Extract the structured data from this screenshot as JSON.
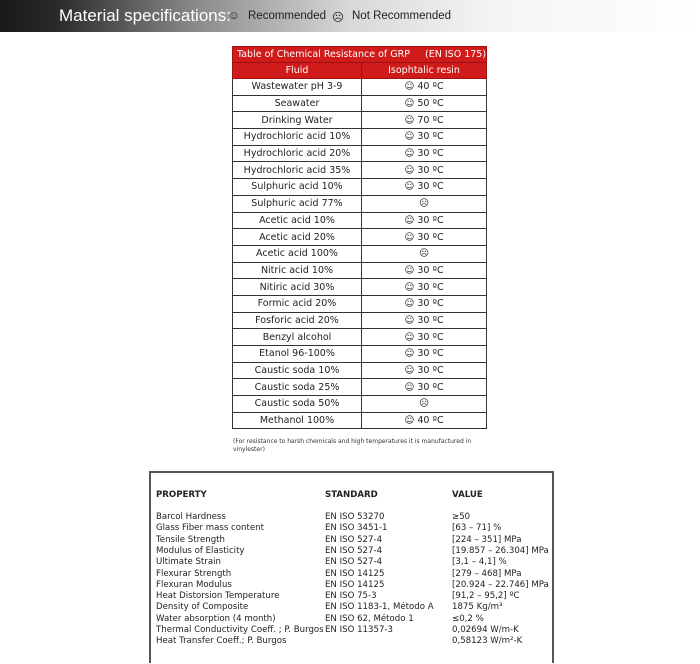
{
  "banner": {
    "title": "Material specifications:",
    "recommended_icon": "smiley-face-icon",
    "recommended": "Recommended",
    "not_recommended_icon": "sad-face-icon",
    "not_recommended": "Not Recommended",
    "smile": "☺",
    "sad": "☹"
  },
  "chem_table": {
    "title": "Table of Chemical Resistance of GRP     (EN ISO 175)",
    "col_fluid": "Fluid",
    "col_resin": "Isophtalic resin",
    "accent": "#d01b1b",
    "rows": [
      {
        "fluid": "Wastewater pH 3-9",
        "value": "☺ 40 ºC"
      },
      {
        "fluid": "Seawater",
        "value": "☺ 50 ºC"
      },
      {
        "fluid": "Drinking Water",
        "value": "☺ 70 ºC"
      },
      {
        "fluid": "Hydrochloric acid  10%",
        "value": "☺ 30 ºC"
      },
      {
        "fluid": "Hydrochloric acid  20%",
        "value": "☺ 30 ºC"
      },
      {
        "fluid": "Hydrochloric acid  35%",
        "value": "☺ 30 ºC"
      },
      {
        "fluid": "Sulphuric acid 10%",
        "value": "☺ 30 ºC"
      },
      {
        "fluid": "Sulphuric acid 77%",
        "value": "☹"
      },
      {
        "fluid": "Acetic acid 10%",
        "value": "☺ 30 ºC"
      },
      {
        "fluid": "Acetic acid  20%",
        "value": "☺ 30 ºC"
      },
      {
        "fluid": "Acetic acid  100%",
        "value": "☹"
      },
      {
        "fluid": "Nitric acid  10%",
        "value": "☺ 30 ºC"
      },
      {
        "fluid": "Nitiric acid  30%",
        "value": "☺ 30 ºC"
      },
      {
        "fluid": "Formic acid 20%",
        "value": "☺ 30 ºC"
      },
      {
        "fluid": "Fosforic acid 20%",
        "value": "☺ 30 ºC"
      },
      {
        "fluid": "Benzyl alcohol",
        "value": "☺ 30 ºC"
      },
      {
        "fluid": "Etanol 96-100%",
        "value": "☺ 30 ºC"
      },
      {
        "fluid": "Caustic soda 10%",
        "value": "☺ 30 ºC"
      },
      {
        "fluid": "Caustic soda 25%",
        "value": "☺ 30 ºC"
      },
      {
        "fluid": "Caustic soda 50%",
        "value": "☹"
      },
      {
        "fluid": "Methanol 100%",
        "value": "☺ 40 ºC"
      }
    ],
    "note": "(For resistance to harsh chemicals and high temperatures it is manufactured in vinylester)"
  },
  "properties": {
    "headers": {
      "property": "PROPERTY",
      "standard": "STANDARD",
      "value": "VALUE"
    },
    "rows": [
      {
        "property": "Barcol Hardness",
        "standard": "EN ISO 53270",
        "value": "≥50"
      },
      {
        "property": "Glass Fiber mass content",
        "standard": "EN ISO 3451-1",
        "value": "[63 – 71] %"
      },
      {
        "property": "Tensile Strength",
        "standard": "EN ISO 527-4",
        "value": "[224 – 351] MPa"
      },
      {
        "property": "Modulus of Elasticity",
        "standard": "EN ISO 527-4",
        "value": "[19.857 – 26.304] MPa"
      },
      {
        "property": "Ultimate Strain",
        "standard": "EN ISO 527-4",
        "value": "[3,1 – 4,1] %"
      },
      {
        "property": "Flexurar Strength",
        "standard": "EN ISO 14125",
        "value": "[279 – 468] MPa"
      },
      {
        "property": "Flexuran Modulus",
        "standard": "EN ISO 14125",
        "value": "[20.924 – 22.746] MPa"
      },
      {
        "property": "Heat Distorsion Temperature",
        "standard": "EN ISO 75-3",
        "value": "[91,2 – 95,2] ºC"
      },
      {
        "property": "Density of Composite",
        "standard": "EN ISO 1183-1, Método A",
        "value": "1875 Kg/m³"
      },
      {
        "property": "Water absorption (4 month)",
        "standard": "EN ISO 62, Método 1",
        "value": "≤0,2 %"
      },
      {
        "property": "Thermal Conductivity Coeff. ; P. Burgos",
        "standard": "EN ISO 11357-3",
        "value": "0,02694 W/m-K"
      },
      {
        "property": "Heat Transfer Coeff.; P. Burgos",
        "standard": "",
        "value": "0,58123 W/m²-K"
      }
    ]
  }
}
